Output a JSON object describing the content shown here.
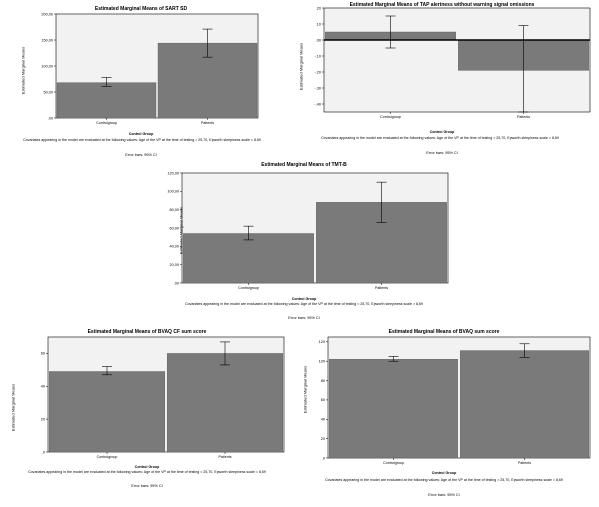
{
  "covariates_note": "Covariates appearing in the model are evaluated at the following values: Age of the VP at the time of testing = 25,70, Epworth sleepiness scale = 8,69",
  "error_bars_label": "Error bars: 95% CI",
  "x_axis_title": "Control Group",
  "chart_data": [
    {
      "type": "bar",
      "title": "Estimated Marginal Means of SART SD",
      "ylabel": "Estimated Marginal Means",
      "xlabel": "Control Group",
      "categories": [
        "Controlgroup",
        "Patients"
      ],
      "values": [
        68,
        144
      ],
      "ci_low": [
        61,
        117
      ],
      "ci_high": [
        78,
        171
      ],
      "ylim": [
        0,
        200
      ],
      "yticks": [
        ".00",
        "50,00",
        "100,00",
        "150,00",
        "200,00"
      ],
      "ytick_values": [
        0,
        50,
        100,
        150,
        200
      ]
    },
    {
      "type": "bar",
      "title": "Estimated Marginal Means of TAP alertness without warning signal omissions",
      "ylabel": "Estimated Marginal Means",
      "xlabel": "Control Group",
      "categories": [
        "Controlgroup",
        "Patients"
      ],
      "values": [
        0.05,
        -0.19
      ],
      "ci_low": [
        -0.05,
        -0.45
      ],
      "ci_high": [
        0.15,
        0.09
      ],
      "ylim": [
        -0.45,
        0.2
      ],
      "yticks": [
        ".20",
        ".10",
        ".00",
        "-.10",
        "-.20",
        "-.30",
        "-.40"
      ],
      "ytick_values": [
        0.2,
        0.1,
        0.0,
        -0.1,
        -0.2,
        -0.3,
        -0.4
      ]
    },
    {
      "type": "bar",
      "title": "Estimated Marginal Means of TMT-B",
      "ylabel": "Estimated Marginal Means",
      "xlabel": "Control Group",
      "categories": [
        "Controlgroup",
        "Patients"
      ],
      "values": [
        54,
        88
      ],
      "ci_low": [
        47,
        66
      ],
      "ci_high": [
        62,
        110
      ],
      "ylim": [
        0,
        120
      ],
      "yticks": [
        ".00",
        "20,00",
        "40,00",
        "60,00",
        "80,00",
        "100,00",
        "120,00"
      ],
      "ytick_values": [
        0,
        20,
        40,
        60,
        80,
        100,
        120
      ]
    },
    {
      "type": "bar",
      "title": "Estimated Marginal Means of BVAQ CF sum score",
      "ylabel": "Estimated Marginal Means",
      "xlabel": "Control Group",
      "categories": [
        "Controlgroup",
        "Patients"
      ],
      "values": [
        49,
        60
      ],
      "ci_low": [
        47,
        53
      ],
      "ci_high": [
        52,
        67
      ],
      "ylim": [
        0,
        70
      ],
      "yticks": [
        ".0",
        "20",
        "40",
        "60"
      ],
      "ytick_values": [
        0,
        20,
        40,
        60
      ]
    },
    {
      "type": "bar",
      "title": "Estimated Marginal Means of BVAQ sum score",
      "ylabel": "Estimated Marginal Means",
      "xlabel": "Control Group",
      "categories": [
        "Controlgroup",
        "Patients"
      ],
      "values": [
        102,
        111
      ],
      "ci_low": [
        100,
        104
      ],
      "ci_high": [
        105,
        118
      ],
      "ylim": [
        0,
        125
      ],
      "yticks": [
        ".0",
        "20",
        "40",
        "60",
        "80",
        "100",
        "120"
      ],
      "ytick_values": [
        0,
        20,
        40,
        60,
        80,
        100,
        120
      ]
    }
  ]
}
